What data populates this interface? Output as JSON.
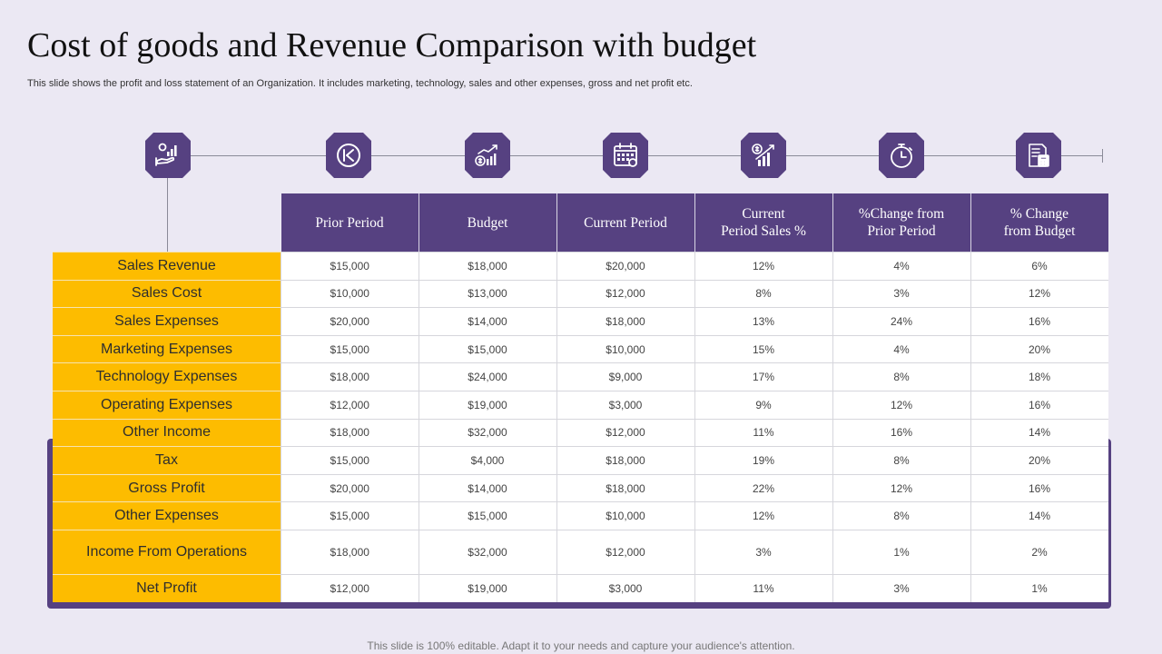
{
  "title": "Cost of goods and Revenue Comparison with budget",
  "subtitle": "This slide shows the profit and loss statement of an Organization. It includes marketing, technology, sales and other expenses, gross and net profit etc.",
  "footer": "This slide is 100% editable. Adapt it to your needs and capture your audience's attention.",
  "colors": {
    "accent_purple": "#564181",
    "label_yellow": "#fdbc00",
    "background": "#ebe8f3"
  },
  "icons": [
    "hand-revenue-icon",
    "rewind-icon",
    "dollar-growth-chart-icon",
    "calendar-icon",
    "dollar-bar-chart-icon",
    "stopwatch-icon",
    "calculator-document-icon"
  ],
  "table": {
    "columns": [
      "Prior Period",
      "Budget",
      "Current Period",
      "Current\nPeriod Sales %",
      "%Change from\nPrior Period",
      "% Change\nfrom Budget"
    ],
    "rows": [
      {
        "label": "Sales Revenue",
        "values": [
          "$15,000",
          "$18,000",
          "$20,000",
          "12%",
          "4%",
          "6%"
        ]
      },
      {
        "label": "Sales Cost",
        "values": [
          "$10,000",
          "$13,000",
          "$12,000",
          "8%",
          "3%",
          "12%"
        ]
      },
      {
        "label": "Sales Expenses",
        "values": [
          "$20,000",
          "$14,000",
          "$18,000",
          "13%",
          "24%",
          "16%"
        ]
      },
      {
        "label": "Marketing Expenses",
        "values": [
          "$15,000",
          "$15,000",
          "$10,000",
          "15%",
          "4%",
          "20%"
        ]
      },
      {
        "label": "Technology  Expenses",
        "values": [
          "$18,000",
          "$24,000",
          "$9,000",
          "17%",
          "8%",
          "18%"
        ]
      },
      {
        "label": "Operating Expenses",
        "values": [
          "$12,000",
          "$19,000",
          "$3,000",
          "9%",
          "12%",
          "16%"
        ]
      },
      {
        "label": "Other Income",
        "values": [
          "$18,000",
          "$32,000",
          "$12,000",
          "11%",
          "16%",
          "14%"
        ]
      },
      {
        "label": "Tax",
        "values": [
          "$15,000",
          "$4,000",
          "$18,000",
          "19%",
          "8%",
          "20%"
        ]
      },
      {
        "label": "Gross Profit",
        "values": [
          "$20,000",
          "$14,000",
          "$18,000",
          "22%",
          "12%",
          "16%"
        ]
      },
      {
        "label": "Other Expenses",
        "values": [
          "$15,000",
          "$15,000",
          "$10,000",
          "12%",
          "8%",
          "14%"
        ]
      },
      {
        "label": "Income  From Operations",
        "values": [
          "$18,000",
          "$32,000",
          "$12,000",
          "3%",
          "1%",
          "2%"
        ]
      },
      {
        "label": "Net Profit",
        "values": [
          "$12,000",
          "$19,000",
          "$3,000",
          "11%",
          "3%",
          "1%"
        ]
      }
    ]
  }
}
